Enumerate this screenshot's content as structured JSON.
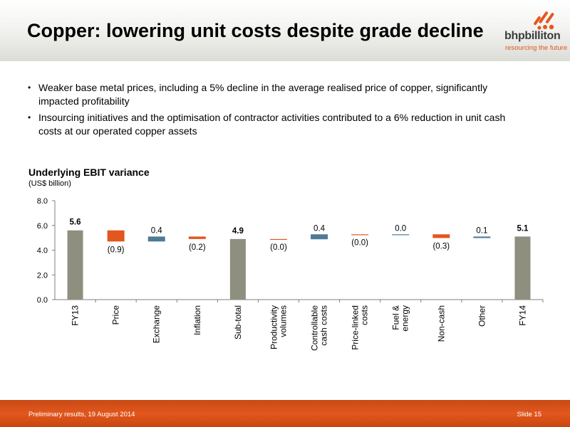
{
  "slide": {
    "title": "Copper: lowering unit costs despite grade decline",
    "bullets": [
      "Weaker base metal prices, including a 5% decline in the average realised price of copper, significantly impacted profitability",
      "Insourcing initiatives and the optimisation of contractor activities contributed to a 6% reduction in unit cash costs at our operated copper assets"
    ]
  },
  "logo": {
    "name": "bhpbilliton",
    "tagline": "resourcing the future",
    "icon": "bhp-dots-logo"
  },
  "footer": {
    "left": "Preliminary results, 19 August 2014",
    "right": "Slide 15"
  },
  "colors": {
    "total": "#8f8f7f",
    "increase": "#4f7a96",
    "decrease": "#e2571e",
    "accent": "#e2571e"
  },
  "chart_data": {
    "type": "bar",
    "subtype": "waterfall",
    "title": "Underlying EBIT variance",
    "unit": "(US$ billion)",
    "ylim": [
      0,
      8
    ],
    "yticks": [
      "0.0",
      "2.0",
      "4.0",
      "6.0",
      "8.0"
    ],
    "grid": false,
    "categories": [
      [
        "FY13"
      ],
      [
        "Price"
      ],
      [
        "Exchange"
      ],
      [
        "Inflation"
      ],
      [
        "Sub-total"
      ],
      [
        "Productivity",
        "volumes"
      ],
      [
        "Controllable",
        "cash costs"
      ],
      [
        "Price-linked",
        "costs"
      ],
      [
        "Fuel &",
        "energy"
      ],
      [
        "Non-cash"
      ],
      [
        "Other"
      ],
      [
        "FY14"
      ]
    ],
    "bars": [
      {
        "kind": "total",
        "start": 0,
        "end": 5.6,
        "label": "5.6"
      },
      {
        "kind": "decrease",
        "start": 5.6,
        "end": 4.7,
        "label": "(0.9)"
      },
      {
        "kind": "increase",
        "start": 4.7,
        "end": 5.1,
        "label": "0.4"
      },
      {
        "kind": "decrease",
        "start": 5.1,
        "end": 4.9,
        "label": "(0.2)"
      },
      {
        "kind": "total",
        "start": 0,
        "end": 4.9,
        "label": "4.9"
      },
      {
        "kind": "decrease",
        "start": 4.9,
        "end": 4.88,
        "label": "(0.0)"
      },
      {
        "kind": "increase",
        "start": 4.88,
        "end": 5.28,
        "label": "0.4"
      },
      {
        "kind": "decrease",
        "start": 5.28,
        "end": 5.26,
        "label": "(0.0)"
      },
      {
        "kind": "increase",
        "start": 5.26,
        "end": 5.28,
        "label": "0.0"
      },
      {
        "kind": "decrease",
        "start": 5.28,
        "end": 4.98,
        "label": "(0.3)"
      },
      {
        "kind": "increase",
        "start": 4.98,
        "end": 5.1,
        "label": "0.1"
      },
      {
        "kind": "total",
        "start": 0,
        "end": 5.1,
        "label": "5.1"
      }
    ]
  }
}
